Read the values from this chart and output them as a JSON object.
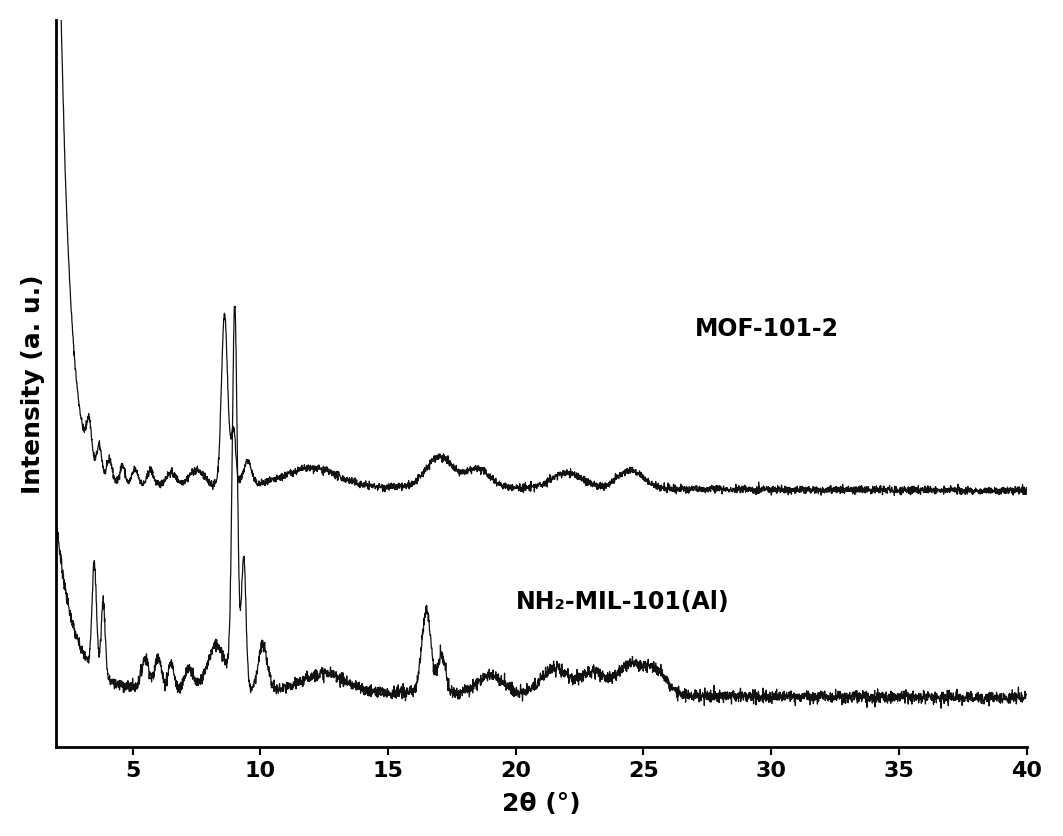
{
  "xlabel": "2θ (°)",
  "ylabel": "Intensity (a. u.)",
  "xlim": [
    2,
    40
  ],
  "ylim": [
    -0.05,
    1.6
  ],
  "xticks": [
    5,
    10,
    15,
    20,
    25,
    30,
    35,
    40
  ],
  "label_mof": "MOF-101-2",
  "label_nh2": "NH₂-MIL-101(Al)",
  "line_color": "#111111",
  "background_color": "#ffffff",
  "label_fontsize": 17,
  "tick_fontsize": 16,
  "linewidth": 0.9
}
